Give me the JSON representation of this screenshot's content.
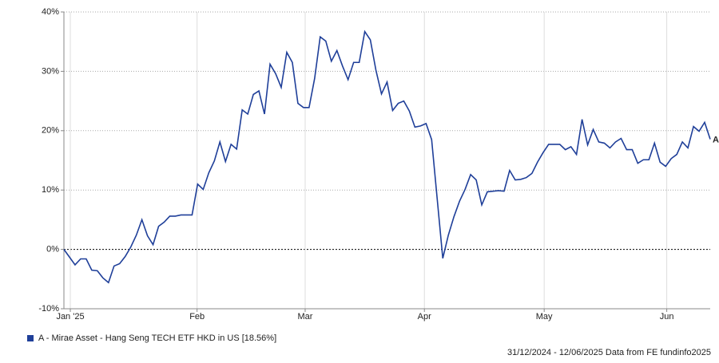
{
  "chart_data": {
    "type": "line",
    "x": [
      0,
      1,
      2,
      3,
      4,
      5,
      6,
      7,
      8,
      9,
      10,
      11,
      12,
      13,
      14,
      15,
      16,
      17,
      18,
      19,
      20,
      21,
      22,
      23,
      24,
      25,
      26,
      27,
      28,
      29,
      30,
      31,
      32,
      33,
      34,
      35,
      36,
      37,
      38,
      39,
      40,
      41,
      42,
      43,
      44,
      45,
      46,
      47,
      48,
      49,
      50,
      51,
      52,
      53,
      54,
      55,
      56,
      57,
      58,
      59,
      60,
      61,
      62,
      63,
      64,
      65,
      66,
      67,
      68,
      69,
      70,
      71,
      72,
      73,
      74,
      75,
      76,
      77,
      78,
      79,
      80,
      81,
      82,
      83,
      84,
      85,
      86,
      87,
      88,
      89,
      90,
      91,
      92,
      93,
      94,
      95,
      96,
      97,
      98,
      99,
      100,
      101,
      102,
      103,
      104,
      105,
      106,
      107,
      108,
      109,
      110,
      111,
      112,
      113,
      114,
      115,
      116
    ],
    "series": [
      {
        "name": "A - Mirae Asset - Hang Seng TECH ETF HKD in US [18.56%]",
        "end_label": "A",
        "color": "#1f3f99",
        "values": [
          0,
          -1.3,
          -2.6,
          -1.6,
          -1.6,
          -3.5,
          -3.6,
          -4.8,
          -5.6,
          -2.8,
          -2.4,
          -1.2,
          0.4,
          2.4,
          5.0,
          2.3,
          0.8,
          3.9,
          4.6,
          5.6,
          5.6,
          5.8,
          5.8,
          5.8,
          11.0,
          10.1,
          12.9,
          14.9,
          18.1,
          14.8,
          17.7,
          16.9,
          23.5,
          22.8,
          26.1,
          26.7,
          22.8,
          31.2,
          29.6,
          27.3,
          33.2,
          31.5,
          24.6,
          23.9,
          23.9,
          28.8,
          35.8,
          35.1,
          31.7,
          33.5,
          30.9,
          28.6,
          31.5,
          31.5,
          36.7,
          35.3,
          30.2,
          26.2,
          28.2,
          23.4,
          24.6,
          25.0,
          23.3,
          20.6,
          20.8,
          21.2,
          18.5,
          8.5,
          -1.5,
          2.4,
          5.5,
          8.1,
          10.1,
          12.6,
          11.7,
          7.5,
          9.7,
          9.8,
          9.9,
          9.8,
          13.3,
          11.7,
          11.8,
          12.1,
          12.8,
          14.7,
          16.3,
          17.7,
          17.7,
          17.7,
          16.8,
          17.3,
          16.0,
          21.9,
          17.6,
          20.2,
          18.1,
          17.9,
          17.1,
          18.1,
          18.7,
          16.8,
          16.8,
          14.5,
          15.1,
          15.1,
          17.9,
          14.7,
          14.0,
          15.3,
          16.0,
          18.1,
          17.1,
          20.7,
          19.9,
          21.4,
          18.56
        ]
      }
    ],
    "xlim": [
      0,
      116
    ],
    "xticks": [
      {
        "value": 1.15,
        "label": "Jan '25"
      },
      {
        "value": 23.9,
        "label": "Feb"
      },
      {
        "value": 43.3,
        "label": "Mar"
      },
      {
        "value": 64.7,
        "label": "Apr"
      },
      {
        "value": 86.2,
        "label": "May"
      },
      {
        "value": 108.2,
        "label": "Jun"
      }
    ],
    "ylim": [
      -10,
      40
    ],
    "yticks": [
      {
        "value": -10,
        "label": "-10%"
      },
      {
        "value": 0,
        "label": "0%"
      },
      {
        "value": 10,
        "label": "10%"
      },
      {
        "value": 20,
        "label": "20%"
      },
      {
        "value": 30,
        "label": "30%"
      },
      {
        "value": 40,
        "label": "40%"
      }
    ],
    "grid": true,
    "footer": "31/12/2024 - 12/06/2025 Data from FE fundinfo2025"
  }
}
